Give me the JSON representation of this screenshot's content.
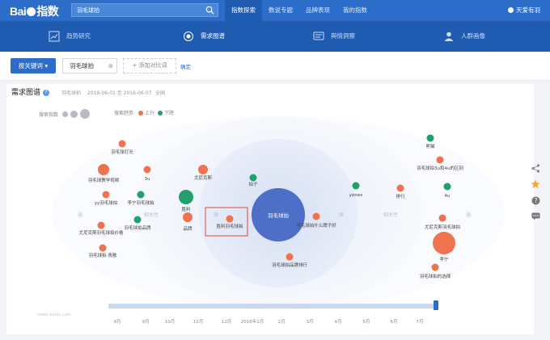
{
  "header": {
    "logo_text": "Bai",
    "logo_suffix": "指数",
    "search_value": "羽毛球拍",
    "nav": [
      {
        "label": "指数探索",
        "active": true
      },
      {
        "label": "数说专题",
        "active": false
      },
      {
        "label": "品牌表现",
        "active": false
      },
      {
        "label": "我的指数",
        "active": false
      }
    ],
    "user": "天爱有羽"
  },
  "subnav": [
    {
      "label": "趋势研究",
      "icon": "trend-chart-icon",
      "active": false
    },
    {
      "label": "需求图谱",
      "icon": "demand-map-icon",
      "active": true
    },
    {
      "label": "舆情洞察",
      "icon": "sentiment-icon",
      "active": false
    },
    {
      "label": "人群画像",
      "icon": "people-icon",
      "active": false
    }
  ],
  "filter": {
    "keyword_button": "按关键词",
    "keyword_tag": "羽毛球拍",
    "add_button": "+ 添加对比词",
    "confirm": "确定"
  },
  "panel": {
    "title": "需求图谱",
    "keyword": "羽毛球拍",
    "date_range": "2016-06-01 至 2016-06-07",
    "region": "全国",
    "legend_search_label": "搜索指数",
    "legend_trend_label": "搜索趋势",
    "legend_up": "上升",
    "legend_down": "下降",
    "watermark": "index.baidu.com"
  },
  "colors": {
    "up": "#f0734f",
    "down": "#22a06b",
    "center": "#4d6fc8",
    "header": "#2b6dc9",
    "subnav": "#1f5bb0"
  },
  "chart_data": {
    "type": "bubble-map",
    "center": "羽毛球拍",
    "ring_labels": {
      "outer_left": "弱",
      "mid_left": "相关性",
      "inner_left": "强",
      "inner_right": "强",
      "mid_right": "相关性",
      "outer_right": "弱"
    },
    "nodes": [
      {
        "label": "羽毛球灯光",
        "trend": "up"
      },
      {
        "label": "羽毛球教学视频",
        "trend": "up"
      },
      {
        "label": "3u",
        "trend": "up"
      },
      {
        "label": "尤尼克斯",
        "trend": "up"
      },
      {
        "label": "yy羽毛球拍",
        "trend": "up"
      },
      {
        "label": "李宁羽毛球拍",
        "trend": "down"
      },
      {
        "label": "胜利",
        "trend": "down"
      },
      {
        "label": "羽毛球拍品牌",
        "trend": "down"
      },
      {
        "label": "品牌",
        "trend": "up"
      },
      {
        "label": "尤尼克斯羽毛球拍价格",
        "trend": "up"
      },
      {
        "label": "羽毛球拍 青散",
        "trend": "up"
      },
      {
        "label": "胜利羽毛球拍",
        "trend": "up",
        "highlighted": true
      },
      {
        "label": "拍子",
        "trend": "down"
      },
      {
        "label": "yonex",
        "trend": "down"
      },
      {
        "label": "羽毛球拍什么牌子好",
        "trend": "up"
      },
      {
        "label": "羽毛球拍品牌排行",
        "trend": "up"
      },
      {
        "label": "排行",
        "trend": "up"
      },
      {
        "label": "熊猫",
        "trend": "down"
      },
      {
        "label": "羽毛球拍3u和4u的区别",
        "trend": "up"
      },
      {
        "label": "4u",
        "trend": "down"
      },
      {
        "label": "尤尼克斯羽毛球拍",
        "trend": "up"
      },
      {
        "label": "李宁",
        "trend": "up"
      },
      {
        "label": "羽毛球拍的选择",
        "trend": "up"
      }
    ],
    "timeline_labels": [
      "9月",
      "9月",
      "10月",
      "11月",
      "12月",
      "2016年1月",
      "2月",
      "3月",
      "4月",
      "5月",
      "6月",
      "7月"
    ]
  }
}
